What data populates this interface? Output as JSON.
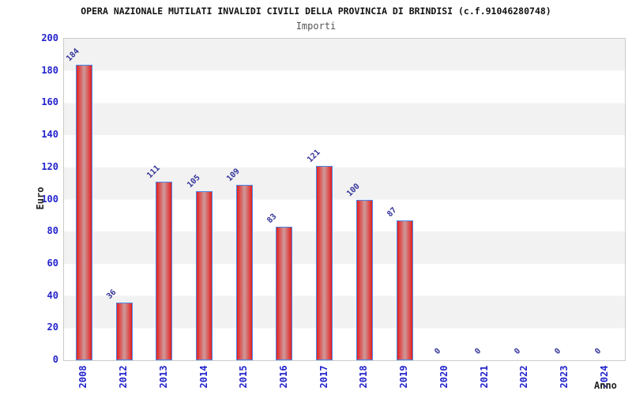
{
  "header": {
    "title": "OPERA NAZIONALE MUTILATI INVALIDI CIVILI DELLA PROVINCIA DI BRINDISI (c.f.91046280748)",
    "subtitle": "Importi"
  },
  "chart_data": {
    "type": "bar",
    "title": "OPERA NAZIONALE MUTILATI INVALIDI CIVILI DELLA PROVINCIA DI BRINDISI (c.f.91046280748)",
    "subtitle": "Importi",
    "categories": [
      "2008",
      "2012",
      "2013",
      "2014",
      "2015",
      "2016",
      "2017",
      "2018",
      "2019",
      "2020",
      "2021",
      "2022",
      "2023",
      "2024"
    ],
    "values": [
      184,
      36,
      111,
      105,
      109,
      83,
      121,
      100,
      87,
      0,
      0,
      0,
      0,
      0
    ],
    "xlabel": "Anno",
    "ylabel": "Euro",
    "ylim": [
      0,
      200
    ],
    "y_tick_step": 20,
    "y_ticks": [
      0,
      20,
      40,
      60,
      80,
      100,
      120,
      140,
      160,
      180,
      200
    ],
    "grid": "horizontal-bands",
    "legend_position": "none",
    "colors": {
      "bar_edge_red": "#e32020",
      "bar_center_pink": "#cf9a9a",
      "bar_border_blue": "#4a86e8",
      "axis_tick_blue": "#2222cc",
      "value_label_navy": "#333399",
      "band_gray": "#f2f2f2",
      "band_white": "#ffffff",
      "plot_border_gray": "#cccccc"
    }
  }
}
